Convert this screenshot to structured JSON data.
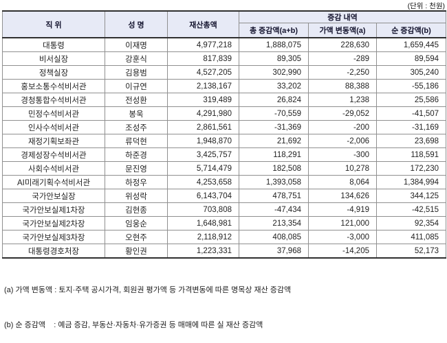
{
  "unit_label": "(단위 : 천원)",
  "table": {
    "headers": {
      "position": "직 위",
      "name": "성 명",
      "total_assets": "재산총액",
      "change_group": "증감 내역",
      "total_change": "총 증감액(a+b)",
      "value_change": "가액 변동액(a)",
      "net_change": "순 증감액(b)"
    },
    "rows": [
      [
        "대통령",
        "이재명",
        "4,977,218",
        "1,888,075",
        "228,630",
        "1,659,445"
      ],
      [
        "비서실장",
        "강훈식",
        "817,839",
        "89,305",
        "-289",
        "89,594"
      ],
      [
        "정책실장",
        "김용범",
        "4,527,205",
        "302,990",
        "-2,250",
        "305,240"
      ],
      [
        "홍보소통수석비서관",
        "이규연",
        "2,138,167",
        "33,202",
        "88,388",
        "-55,186"
      ],
      [
        "경청통합수석비서관",
        "전성환",
        "319,489",
        "26,824",
        "1,238",
        "25,586"
      ],
      [
        "민정수석비서관",
        "봉욱",
        "4,291,980",
        "-70,559",
        "-29,052",
        "-41,507"
      ],
      [
        "인사수석비서관",
        "조성주",
        "2,861,561",
        "-31,369",
        "-200",
        "-31,169"
      ],
      [
        "재정기획보좌관",
        "류덕현",
        "1,948,870",
        "21,692",
        "-2,006",
        "23,698"
      ],
      [
        "경제성장수석비서관",
        "하준경",
        "3,425,757",
        "118,291",
        "-300",
        "118,591"
      ],
      [
        "사회수석비서관",
        "문진영",
        "5,714,479",
        "182,508",
        "10,278",
        "172,230"
      ],
      [
        "AI미래기획수석비서관",
        "하정우",
        "4,253,658",
        "1,393,058",
        "8,064",
        "1,384,994"
      ],
      [
        "국가안보실장",
        "위성락",
        "6,143,704",
        "478,751",
        "134,626",
        "344,125"
      ],
      [
        "국가안보실제1차장",
        "김현종",
        "703,808",
        "-47,434",
        "-4,919",
        "-42,515"
      ],
      [
        "국가안보실제2차장",
        "임웅순",
        "1,648,981",
        "213,354",
        "121,000",
        "92,354"
      ],
      [
        "국가안보실제3차장",
        "오현주",
        "2,118,912",
        "408,085",
        "-3,000",
        "411,085"
      ],
      [
        "대통령경호처장",
        "황인권",
        "1,223,331",
        "37,968",
        "-14,205",
        "52,173"
      ]
    ]
  },
  "footnotes": [
    "(a) 가액 변동액 : 토지·주택 공시가격, 회원권 평가액 등 가격변동에 따른 명목상 재산 증감액",
    "(b) 순 증감액    : 예금 증감, 부동산·자동차·유가증권 등 매매에 따른 실 재산 증감액"
  ],
  "colors": {
    "header_bg": "#e7eaf6",
    "border_dark": "#2e2e2e",
    "border_gray": "#8f8f8f",
    "text": "#222222"
  }
}
